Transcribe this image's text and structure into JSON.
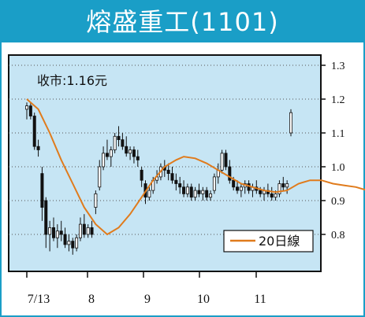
{
  "title": "熔盛重工(1101)",
  "close_label": "收市:1.16元",
  "legend_label": "20日線",
  "colors": {
    "frame": "#1a9ec7",
    "plot_bg": "#c6e5f4",
    "candle": "#111111",
    "ma20": "#e07b1c",
    "grid": "#555555"
  },
  "chart_data": {
    "type": "candlestick",
    "y_ticks": [
      "0.8",
      "0.9",
      "1.0",
      "1.1",
      "1.2",
      "1.3"
    ],
    "x_ticks": [
      "7/13",
      "8",
      "9",
      "10",
      "11"
    ],
    "ylim": [
      0.72,
      1.32
    ],
    "grid": "dotted-horizontal",
    "legend_position": "bottom-right",
    "series": [
      {
        "name": "20日線",
        "type": "line",
        "values": [
          [
            0,
            1.2
          ],
          [
            3,
            1.17
          ],
          [
            6,
            1.1
          ],
          [
            9,
            1.02
          ],
          [
            12,
            0.95
          ],
          [
            15,
            0.88
          ],
          [
            18,
            0.83
          ],
          [
            21,
            0.8
          ],
          [
            24,
            0.82
          ],
          [
            27,
            0.86
          ],
          [
            30,
            0.91
          ],
          [
            33,
            0.96
          ],
          [
            36,
            1.0
          ],
          [
            39,
            1.02
          ],
          [
            41,
            1.03
          ],
          [
            44,
            1.025
          ],
          [
            47,
            1.01
          ],
          [
            50,
            0.99
          ],
          [
            53,
            0.97
          ],
          [
            56,
            0.95
          ],
          [
            59,
            0.94
          ],
          [
            62,
            0.93
          ],
          [
            65,
            0.925
          ],
          [
            68,
            0.93
          ],
          [
            71,
            0.95
          ],
          [
            74,
            0.96
          ],
          [
            77,
            0.96
          ],
          [
            80,
            0.95
          ],
          [
            83,
            0.945
          ],
          [
            86,
            0.94
          ],
          [
            89,
            0.93
          ],
          [
            90,
            0.94
          ]
        ]
      }
    ],
    "ohlc": [
      [
        1.17,
        1.19,
        1.14,
        1.18
      ],
      [
        1.18,
        1.19,
        1.14,
        1.15
      ],
      [
        1.15,
        1.16,
        1.05,
        1.06
      ],
      [
        1.06,
        1.08,
        1.03,
        1.05
      ],
      [
        0.98,
        1.0,
        0.84,
        0.88
      ],
      [
        0.9,
        0.91,
        0.76,
        0.8
      ],
      [
        0.8,
        0.84,
        0.75,
        0.82
      ],
      [
        0.82,
        0.85,
        0.78,
        0.79
      ],
      [
        0.79,
        0.83,
        0.76,
        0.81
      ],
      [
        0.81,
        0.84,
        0.78,
        0.8
      ],
      [
        0.8,
        0.82,
        0.76,
        0.77
      ],
      [
        0.77,
        0.8,
        0.75,
        0.78
      ],
      [
        0.78,
        0.79,
        0.74,
        0.76
      ],
      [
        0.76,
        0.8,
        0.75,
        0.79
      ],
      [
        0.79,
        0.85,
        0.78,
        0.83
      ],
      [
        0.83,
        0.86,
        0.79,
        0.8
      ],
      [
        0.8,
        0.83,
        0.79,
        0.82
      ],
      [
        0.82,
        0.84,
        0.79,
        0.8
      ],
      [
        0.88,
        0.93,
        0.86,
        0.92
      ],
      [
        0.94,
        1.02,
        0.93,
        1.0
      ],
      [
        1.0,
        1.06,
        0.99,
        1.04
      ],
      [
        1.04,
        1.08,
        1.02,
        1.03
      ],
      [
        1.03,
        1.06,
        1.0,
        1.05
      ],
      [
        1.05,
        1.1,
        1.04,
        1.09
      ],
      [
        1.09,
        1.12,
        1.06,
        1.08
      ],
      [
        1.08,
        1.1,
        1.05,
        1.06
      ],
      [
        1.06,
        1.09,
        1.03,
        1.04
      ],
      [
        1.04,
        1.06,
        1.02,
        1.05
      ],
      [
        1.05,
        1.06,
        1.01,
        1.03
      ],
      [
        1.03,
        1.05,
        1.0,
        1.02
      ],
      [
        0.99,
        1.0,
        0.94,
        0.96
      ],
      [
        0.95,
        0.96,
        0.89,
        0.91
      ],
      [
        0.91,
        0.94,
        0.9,
        0.93
      ],
      [
        0.93,
        0.97,
        0.92,
        0.96
      ],
      [
        0.96,
        0.99,
        0.95,
        0.97
      ],
      [
        0.97,
        1.01,
        0.96,
        1.0
      ],
      [
        1.0,
        1.02,
        0.97,
        0.99
      ],
      [
        0.99,
        1.01,
        0.96,
        0.98
      ],
      [
        0.98,
        1.0,
        0.95,
        0.96
      ],
      [
        0.96,
        0.98,
        0.93,
        0.95
      ],
      [
        0.95,
        0.97,
        0.92,
        0.94
      ],
      [
        0.94,
        0.96,
        0.91,
        0.92
      ],
      [
        0.92,
        0.95,
        0.91,
        0.94
      ],
      [
        0.94,
        0.95,
        0.9,
        0.91
      ],
      [
        0.91,
        0.94,
        0.9,
        0.93
      ],
      [
        0.93,
        0.95,
        0.91,
        0.92
      ],
      [
        0.92,
        0.94,
        0.9,
        0.93
      ],
      [
        0.93,
        0.94,
        0.9,
        0.91
      ],
      [
        0.91,
        0.93,
        0.9,
        0.92
      ],
      [
        0.93,
        0.98,
        0.92,
        0.97
      ],
      [
        0.97,
        1.01,
        0.95,
        0.99
      ],
      [
        0.99,
        1.05,
        0.98,
        1.04
      ],
      [
        1.04,
        1.05,
        0.99,
        1.0
      ],
      [
        1.0,
        1.02,
        0.95,
        0.96
      ],
      [
        0.96,
        0.97,
        0.93,
        0.94
      ],
      [
        0.94,
        0.96,
        0.92,
        0.93
      ],
      [
        0.93,
        0.95,
        0.91,
        0.94
      ],
      [
        0.94,
        0.96,
        0.92,
        0.95
      ],
      [
        0.95,
        0.96,
        0.92,
        0.93
      ],
      [
        0.93,
        0.95,
        0.91,
        0.94
      ],
      [
        0.94,
        0.96,
        0.92,
        0.93
      ],
      [
        0.93,
        0.94,
        0.91,
        0.92
      ],
      [
        0.92,
        0.94,
        0.9,
        0.93
      ],
      [
        0.93,
        0.95,
        0.91,
        0.92
      ],
      [
        0.92,
        0.94,
        0.9,
        0.91
      ],
      [
        0.91,
        0.93,
        0.9,
        0.92
      ],
      [
        0.92,
        0.96,
        0.91,
        0.95
      ],
      [
        0.95,
        0.97,
        0.93,
        0.94
      ],
      [
        0.94,
        0.96,
        0.92,
        0.95
      ],
      [
        1.1,
        1.17,
        1.09,
        1.16
      ]
    ]
  }
}
